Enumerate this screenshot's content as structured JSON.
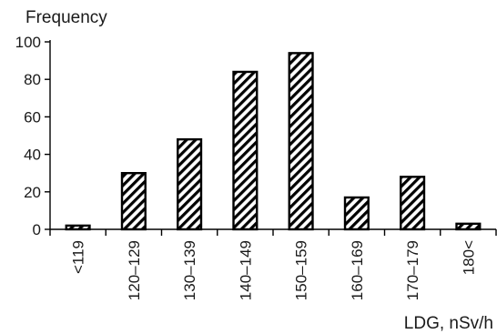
{
  "chart_data": {
    "type": "bar",
    "ylabel": "Frequency",
    "xlabel": "LDG, nSv/h",
    "categories": [
      "<119",
      "120–129",
      "130–139",
      "140–149",
      "150–159",
      "160–169",
      "170–179",
      "180<"
    ],
    "values": [
      2,
      30,
      48,
      84,
      94,
      17,
      28,
      3
    ],
    "ylim": [
      0,
      100
    ],
    "yticks": [
      0,
      20,
      40,
      60,
      80,
      100
    ],
    "grid": false,
    "legend": "none",
    "bar_fill": "diagonal-hatch",
    "bar_color": "#000000"
  }
}
